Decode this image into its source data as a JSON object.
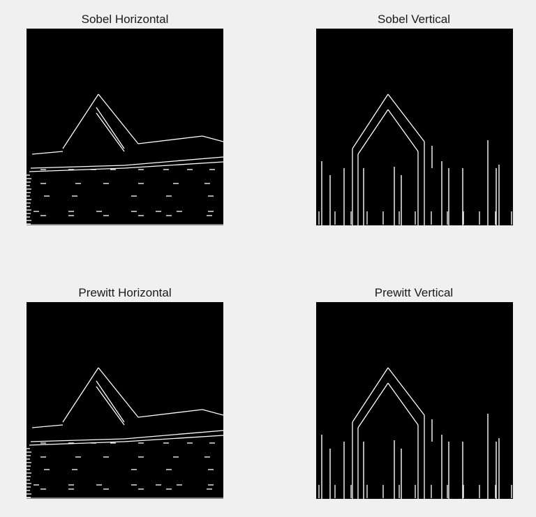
{
  "figure": {
    "panels": [
      {
        "title": "Sobel Horizontal",
        "orientation": "horizontal"
      },
      {
        "title": "Sobel Vertical",
        "orientation": "vertical"
      },
      {
        "title": "Prewitt Horizontal",
        "orientation": "horizontal"
      },
      {
        "title": "Prewitt Vertical",
        "orientation": "vertical"
      }
    ],
    "background_color": "#f0f0f0",
    "image_background": "#000000",
    "edge_color": "#ffffff"
  }
}
